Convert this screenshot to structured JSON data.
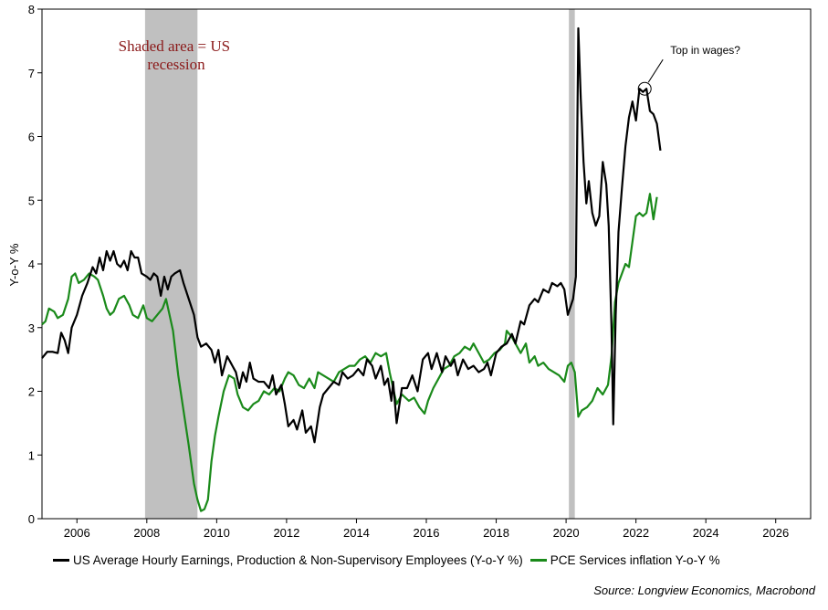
{
  "chart_data": {
    "type": "line",
    "title": "",
    "ylabel": "Y-o-Y %",
    "xlabel": "",
    "xlim": [
      2005.0,
      2027.0
    ],
    "ylim": [
      0,
      8
    ],
    "x_ticks": [
      2006,
      2008,
      2010,
      2012,
      2014,
      2016,
      2018,
      2020,
      2022,
      2024,
      2026
    ],
    "x_tick_labels": [
      "2006",
      "2008",
      "2010",
      "2012",
      "2014",
      "2016",
      "2018",
      "2020",
      "2022",
      "2024",
      "2026"
    ],
    "y_ticks": [
      0,
      1,
      2,
      3,
      4,
      5,
      6,
      7,
      8
    ],
    "y_tick_labels": [
      "0",
      "1",
      "2",
      "3",
      "4",
      "5",
      "6",
      "7",
      "8"
    ],
    "recessions": [
      {
        "start": 2007.95,
        "end": 2009.45
      },
      {
        "start": 2020.08,
        "end": 2020.25
      }
    ],
    "recession_note": "Shaded area = US recession",
    "annotation": {
      "text": "Top in wages?",
      "x": 2022.25,
      "y": 6.75
    },
    "legend_placement": "bottom",
    "source": "Source: Longview Economics, Macrobond",
    "series": [
      {
        "name": "US Average Hourly Earnings, Production & Non-Supervisory Employees (Y-o-Y %)",
        "color": "#000000",
        "points": [
          [
            2005.0,
            2.52
          ],
          [
            2005.15,
            2.62
          ],
          [
            2005.3,
            2.62
          ],
          [
            2005.45,
            2.6
          ],
          [
            2005.55,
            2.92
          ],
          [
            2005.65,
            2.8
          ],
          [
            2005.75,
            2.6
          ],
          [
            2005.85,
            3.0
          ],
          [
            2006.0,
            3.2
          ],
          [
            2006.15,
            3.5
          ],
          [
            2006.3,
            3.7
          ],
          [
            2006.45,
            3.95
          ],
          [
            2006.55,
            3.85
          ],
          [
            2006.65,
            4.1
          ],
          [
            2006.75,
            3.9
          ],
          [
            2006.85,
            4.2
          ],
          [
            2006.95,
            4.05
          ],
          [
            2007.05,
            4.2
          ],
          [
            2007.15,
            4.0
          ],
          [
            2007.25,
            3.95
          ],
          [
            2007.35,
            4.05
          ],
          [
            2007.45,
            3.9
          ],
          [
            2007.55,
            4.2
          ],
          [
            2007.65,
            4.1
          ],
          [
            2007.75,
            4.1
          ],
          [
            2007.85,
            3.85
          ],
          [
            2008.0,
            3.8
          ],
          [
            2008.1,
            3.75
          ],
          [
            2008.2,
            3.85
          ],
          [
            2008.3,
            3.8
          ],
          [
            2008.4,
            3.5
          ],
          [
            2008.5,
            3.8
          ],
          [
            2008.6,
            3.6
          ],
          [
            2008.7,
            3.8
          ],
          [
            2008.8,
            3.85
          ],
          [
            2008.95,
            3.9
          ],
          [
            2009.05,
            3.7
          ],
          [
            2009.2,
            3.45
          ],
          [
            2009.35,
            3.2
          ],
          [
            2009.45,
            2.85
          ],
          [
            2009.55,
            2.7
          ],
          [
            2009.7,
            2.75
          ],
          [
            2009.85,
            2.65
          ],
          [
            2009.95,
            2.45
          ],
          [
            2010.05,
            2.65
          ],
          [
            2010.15,
            2.25
          ],
          [
            2010.3,
            2.55
          ],
          [
            2010.45,
            2.4
          ],
          [
            2010.55,
            2.3
          ],
          [
            2010.65,
            2.05
          ],
          [
            2010.75,
            2.3
          ],
          [
            2010.85,
            2.15
          ],
          [
            2010.95,
            2.45
          ],
          [
            2011.05,
            2.2
          ],
          [
            2011.2,
            2.15
          ],
          [
            2011.35,
            2.15
          ],
          [
            2011.5,
            2.05
          ],
          [
            2011.6,
            2.25
          ],
          [
            2011.7,
            1.95
          ],
          [
            2011.85,
            2.1
          ],
          [
            2011.95,
            1.8
          ],
          [
            2012.05,
            1.45
          ],
          [
            2012.2,
            1.55
          ],
          [
            2012.3,
            1.4
          ],
          [
            2012.45,
            1.7
          ],
          [
            2012.55,
            1.35
          ],
          [
            2012.7,
            1.45
          ],
          [
            2012.8,
            1.2
          ],
          [
            2012.95,
            1.75
          ],
          [
            2013.05,
            1.95
          ],
          [
            2013.2,
            2.05
          ],
          [
            2013.35,
            2.15
          ],
          [
            2013.5,
            2.1
          ],
          [
            2013.6,
            2.3
          ],
          [
            2013.75,
            2.2
          ],
          [
            2013.9,
            2.25
          ],
          [
            2014.05,
            2.35
          ],
          [
            2014.2,
            2.25
          ],
          [
            2014.3,
            2.5
          ],
          [
            2014.45,
            2.4
          ],
          [
            2014.55,
            2.2
          ],
          [
            2014.7,
            2.4
          ],
          [
            2014.8,
            2.1
          ],
          [
            2014.9,
            2.2
          ],
          [
            2015.0,
            1.85
          ],
          [
            2015.05,
            2.15
          ],
          [
            2015.15,
            1.5
          ],
          [
            2015.3,
            2.05
          ],
          [
            2015.45,
            2.05
          ],
          [
            2015.6,
            2.25
          ],
          [
            2015.75,
            2.0
          ],
          [
            2015.9,
            2.5
          ],
          [
            2016.05,
            2.6
          ],
          [
            2016.15,
            2.35
          ],
          [
            2016.3,
            2.6
          ],
          [
            2016.45,
            2.3
          ],
          [
            2016.55,
            2.55
          ],
          [
            2016.7,
            2.4
          ],
          [
            2016.8,
            2.5
          ],
          [
            2016.9,
            2.25
          ],
          [
            2017.05,
            2.5
          ],
          [
            2017.2,
            2.35
          ],
          [
            2017.35,
            2.4
          ],
          [
            2017.5,
            2.3
          ],
          [
            2017.65,
            2.35
          ],
          [
            2017.75,
            2.45
          ],
          [
            2017.85,
            2.25
          ],
          [
            2018.0,
            2.6
          ],
          [
            2018.15,
            2.7
          ],
          [
            2018.3,
            2.75
          ],
          [
            2018.45,
            2.9
          ],
          [
            2018.55,
            2.75
          ],
          [
            2018.7,
            3.1
          ],
          [
            2018.8,
            3.05
          ],
          [
            2018.95,
            3.35
          ],
          [
            2019.1,
            3.45
          ],
          [
            2019.2,
            3.4
          ],
          [
            2019.35,
            3.6
          ],
          [
            2019.5,
            3.55
          ],
          [
            2019.6,
            3.7
          ],
          [
            2019.75,
            3.65
          ],
          [
            2019.85,
            3.7
          ],
          [
            2019.95,
            3.6
          ],
          [
            2020.05,
            3.2
          ],
          [
            2020.2,
            3.45
          ],
          [
            2020.28,
            3.8
          ],
          [
            2020.35,
            7.7
          ],
          [
            2020.42,
            6.6
          ],
          [
            2020.5,
            5.6
          ],
          [
            2020.58,
            4.95
          ],
          [
            2020.65,
            5.3
          ],
          [
            2020.75,
            4.8
          ],
          [
            2020.85,
            4.6
          ],
          [
            2020.95,
            4.75
          ],
          [
            2021.05,
            5.6
          ],
          [
            2021.15,
            5.25
          ],
          [
            2021.22,
            4.6
          ],
          [
            2021.3,
            3.0
          ],
          [
            2021.35,
            1.48
          ],
          [
            2021.42,
            3.2
          ],
          [
            2021.5,
            4.5
          ],
          [
            2021.6,
            5.2
          ],
          [
            2021.7,
            5.85
          ],
          [
            2021.8,
            6.3
          ],
          [
            2021.9,
            6.55
          ],
          [
            2022.0,
            6.25
          ],
          [
            2022.1,
            6.75
          ],
          [
            2022.2,
            6.7
          ],
          [
            2022.3,
            6.75
          ],
          [
            2022.4,
            6.4
          ],
          [
            2022.5,
            6.35
          ],
          [
            2022.6,
            6.2
          ],
          [
            2022.7,
            5.78
          ]
        ]
      },
      {
        "name": "PCE Services inflation Y-o-Y %",
        "color": "#1a8a1a",
        "points": [
          [
            2005.0,
            3.05
          ],
          [
            2005.1,
            3.1
          ],
          [
            2005.2,
            3.3
          ],
          [
            2005.35,
            3.25
          ],
          [
            2005.45,
            3.15
          ],
          [
            2005.6,
            3.2
          ],
          [
            2005.75,
            3.45
          ],
          [
            2005.85,
            3.8
          ],
          [
            2005.95,
            3.85
          ],
          [
            2006.05,
            3.7
          ],
          [
            2006.2,
            3.75
          ],
          [
            2006.35,
            3.85
          ],
          [
            2006.5,
            3.8
          ],
          [
            2006.6,
            3.75
          ],
          [
            2006.75,
            3.5
          ],
          [
            2006.85,
            3.3
          ],
          [
            2006.95,
            3.2
          ],
          [
            2007.05,
            3.25
          ],
          [
            2007.2,
            3.45
          ],
          [
            2007.35,
            3.5
          ],
          [
            2007.5,
            3.35
          ],
          [
            2007.6,
            3.2
          ],
          [
            2007.75,
            3.15
          ],
          [
            2007.9,
            3.35
          ],
          [
            2008.0,
            3.15
          ],
          [
            2008.15,
            3.1
          ],
          [
            2008.3,
            3.2
          ],
          [
            2008.45,
            3.3
          ],
          [
            2008.55,
            3.45
          ],
          [
            2008.65,
            3.2
          ],
          [
            2008.75,
            2.95
          ],
          [
            2008.9,
            2.25
          ],
          [
            2009.05,
            1.7
          ],
          [
            2009.2,
            1.15
          ],
          [
            2009.35,
            0.55
          ],
          [
            2009.45,
            0.3
          ],
          [
            2009.55,
            0.12
          ],
          [
            2009.65,
            0.15
          ],
          [
            2009.75,
            0.3
          ],
          [
            2009.85,
            0.9
          ],
          [
            2009.95,
            1.3
          ],
          [
            2010.05,
            1.6
          ],
          [
            2010.2,
            2.0
          ],
          [
            2010.35,
            2.25
          ],
          [
            2010.5,
            2.2
          ],
          [
            2010.6,
            1.95
          ],
          [
            2010.75,
            1.75
          ],
          [
            2010.9,
            1.7
          ],
          [
            2011.05,
            1.8
          ],
          [
            2011.2,
            1.85
          ],
          [
            2011.35,
            2.0
          ],
          [
            2011.5,
            1.95
          ],
          [
            2011.65,
            2.05
          ],
          [
            2011.8,
            2.0
          ],
          [
            2011.95,
            2.2
          ],
          [
            2012.05,
            2.3
          ],
          [
            2012.2,
            2.25
          ],
          [
            2012.35,
            2.1
          ],
          [
            2012.5,
            2.05
          ],
          [
            2012.65,
            2.2
          ],
          [
            2012.8,
            2.05
          ],
          [
            2012.9,
            2.3
          ],
          [
            2013.05,
            2.25
          ],
          [
            2013.2,
            2.2
          ],
          [
            2013.35,
            2.15
          ],
          [
            2013.5,
            2.3
          ],
          [
            2013.65,
            2.35
          ],
          [
            2013.8,
            2.4
          ],
          [
            2013.95,
            2.4
          ],
          [
            2014.1,
            2.5
          ],
          [
            2014.25,
            2.55
          ],
          [
            2014.4,
            2.45
          ],
          [
            2014.55,
            2.6
          ],
          [
            2014.7,
            2.55
          ],
          [
            2014.85,
            2.6
          ],
          [
            2014.95,
            2.3
          ],
          [
            2015.05,
            2.05
          ],
          [
            2015.15,
            1.8
          ],
          [
            2015.3,
            1.95
          ],
          [
            2015.5,
            1.85
          ],
          [
            2015.65,
            1.9
          ],
          [
            2015.8,
            1.75
          ],
          [
            2015.95,
            1.65
          ],
          [
            2016.05,
            1.85
          ],
          [
            2016.2,
            2.05
          ],
          [
            2016.35,
            2.2
          ],
          [
            2016.5,
            2.35
          ],
          [
            2016.65,
            2.4
          ],
          [
            2016.8,
            2.55
          ],
          [
            2016.95,
            2.6
          ],
          [
            2017.1,
            2.7
          ],
          [
            2017.25,
            2.65
          ],
          [
            2017.35,
            2.75
          ],
          [
            2017.5,
            2.6
          ],
          [
            2017.65,
            2.45
          ],
          [
            2017.8,
            2.5
          ],
          [
            2017.95,
            2.6
          ],
          [
            2018.1,
            2.65
          ],
          [
            2018.25,
            2.75
          ],
          [
            2018.3,
            2.95
          ],
          [
            2018.45,
            2.85
          ],
          [
            2018.55,
            2.75
          ],
          [
            2018.7,
            2.6
          ],
          [
            2018.85,
            2.75
          ],
          [
            2018.95,
            2.45
          ],
          [
            2019.1,
            2.55
          ],
          [
            2019.2,
            2.4
          ],
          [
            2019.35,
            2.45
          ],
          [
            2019.5,
            2.35
          ],
          [
            2019.65,
            2.3
          ],
          [
            2019.8,
            2.25
          ],
          [
            2019.95,
            2.15
          ],
          [
            2020.05,
            2.4
          ],
          [
            2020.15,
            2.45
          ],
          [
            2020.25,
            2.3
          ],
          [
            2020.35,
            1.6
          ],
          [
            2020.45,
            1.7
          ],
          [
            2020.6,
            1.75
          ],
          [
            2020.75,
            1.85
          ],
          [
            2020.9,
            2.05
          ],
          [
            2021.05,
            1.95
          ],
          [
            2021.2,
            2.1
          ],
          [
            2021.3,
            2.55
          ],
          [
            2021.4,
            3.4
          ],
          [
            2021.5,
            3.7
          ],
          [
            2021.6,
            3.85
          ],
          [
            2021.7,
            4.0
          ],
          [
            2021.8,
            3.95
          ],
          [
            2021.9,
            4.35
          ],
          [
            2022.0,
            4.75
          ],
          [
            2022.1,
            4.8
          ],
          [
            2022.2,
            4.75
          ],
          [
            2022.3,
            4.8
          ],
          [
            2022.4,
            5.1
          ],
          [
            2022.5,
            4.7
          ],
          [
            2022.6,
            5.05
          ]
        ]
      }
    ]
  }
}
